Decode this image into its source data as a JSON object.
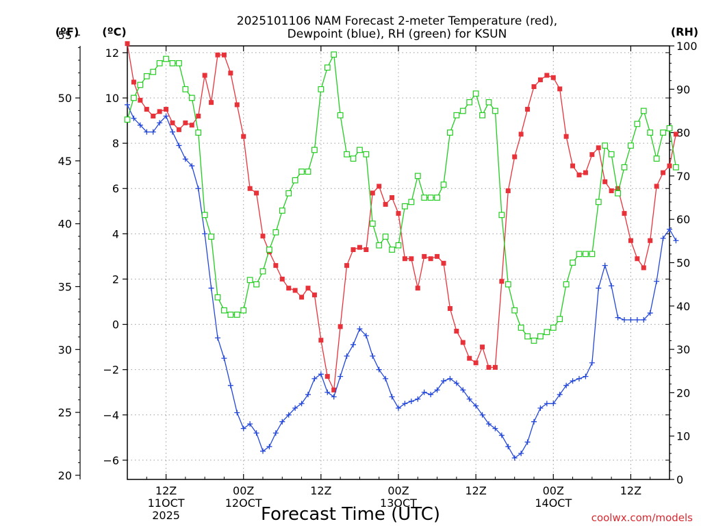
{
  "chart_data": {
    "type": "line",
    "title": [
      "2025101106 NAM Forecast 2-meter Temperature (red),",
      "Dewpoint (blue), RH (green) for KSUN"
    ],
    "xlabel": "Forecast Time (UTC)",
    "credit": "coolwx.com/models",
    "units": {
      "left_f": "(ºF)",
      "left_c": "(ºC)",
      "right": "(RH)"
    },
    "x_ticks": [
      {
        "h": 6,
        "label": [
          "12Z",
          "11OCT",
          "2025"
        ]
      },
      {
        "h": 18,
        "label": [
          "00Z",
          "12OCT"
        ]
      },
      {
        "h": 30,
        "label": [
          "12Z"
        ]
      },
      {
        "h": 42,
        "label": [
          "00Z",
          "13OCT"
        ]
      },
      {
        "h": 54,
        "label": [
          "12Z"
        ]
      },
      {
        "h": 66,
        "label": [
          "00Z",
          "14OCT"
        ]
      },
      {
        "h": 78,
        "label": [
          "12Z"
        ]
      }
    ],
    "x_range": [
      0,
      84
    ],
    "celsius_axis": {
      "range": [
        -6.85,
        12.3
      ],
      "ticks": [
        -6,
        -4,
        -2,
        0,
        2,
        4,
        6,
        8,
        10,
        12
      ]
    },
    "fahrenheit_axis": {
      "ticks": [
        20,
        25,
        30,
        35,
        40,
        45,
        50,
        55
      ]
    },
    "rh_axis": {
      "range": [
        0,
        100
      ],
      "ticks": [
        0,
        10,
        20,
        30,
        40,
        50,
        60,
        70,
        80,
        90,
        100
      ]
    },
    "series": [
      {
        "name": "Temperature",
        "unit": "C",
        "color": "#e8323a",
        "marker": "filled-square",
        "values": [
          12.4,
          10.7,
          9.9,
          9.5,
          9.2,
          9.4,
          9.5,
          8.9,
          8.6,
          8.9,
          8.8,
          9.2,
          11.0,
          9.8,
          11.9,
          11.9,
          11.1,
          9.7,
          8.3,
          6.0,
          5.8,
          3.9,
          3.2,
          2.6,
          2.0,
          1.6,
          1.5,
          1.2,
          1.6,
          1.3,
          -0.7,
          -2.3,
          -2.9,
          -0.1,
          2.6,
          3.3,
          3.4,
          3.3,
          5.8,
          6.1,
          5.3,
          5.6,
          4.9,
          2.9,
          2.9,
          1.6,
          3.0,
          2.9,
          3.0,
          2.7,
          0.7,
          -0.3,
          -0.8,
          -1.5,
          -1.7,
          -1.0,
          -1.9,
          -1.9,
          1.9,
          5.9,
          7.4,
          8.4,
          9.5,
          10.5,
          10.8,
          11.0,
          10.9,
          10.4,
          8.3,
          7.0,
          6.6,
          6.7,
          7.5,
          7.8,
          6.3,
          5.9,
          6.0,
          4.9,
          3.7,
          2.9,
          2.5,
          3.7,
          6.1,
          6.7,
          7.0,
          8.4
        ]
      },
      {
        "name": "Dewpoint",
        "unit": "C",
        "color": "#2246d8",
        "marker": "plus",
        "values": [
          9.7,
          9.1,
          8.8,
          8.5,
          8.5,
          8.9,
          9.2,
          8.5,
          7.9,
          7.3,
          7.0,
          6.0,
          4.0,
          1.6,
          -0.6,
          -1.5,
          -2.7,
          -3.9,
          -4.6,
          -4.4,
          -4.8,
          -5.6,
          -5.4,
          -4.8,
          -4.3,
          -4.0,
          -3.7,
          -3.5,
          -3.1,
          -2.4,
          -2.2,
          -3.0,
          -3.2,
          -2.3,
          -1.4,
          -0.9,
          -0.2,
          -0.5,
          -1.4,
          -2.0,
          -2.4,
          -3.2,
          -3.7,
          -3.5,
          -3.4,
          -3.3,
          -3.0,
          -3.1,
          -2.9,
          -2.5,
          -2.4,
          -2.6,
          -2.9,
          -3.3,
          -3.6,
          -4.0,
          -4.4,
          -4.6,
          -4.9,
          -5.4,
          -5.9,
          -5.7,
          -5.2,
          -4.3,
          -3.7,
          -3.5,
          -3.5,
          -3.1,
          -2.7,
          -2.5,
          -2.4,
          -2.3,
          -1.7,
          1.6,
          2.6,
          1.7,
          0.3,
          0.2,
          0.2,
          0.2,
          0.2,
          0.5,
          1.9,
          3.8,
          4.2,
          3.7
        ]
      },
      {
        "name": "RH",
        "unit": "%",
        "color": "#21cc1e",
        "marker": "open-square",
        "values": [
          83,
          88,
          91,
          93,
          94,
          96,
          97,
          96,
          96,
          90,
          88,
          80,
          61,
          56,
          42,
          39,
          38,
          38,
          39,
          46,
          45,
          48,
          53,
          57,
          62,
          66,
          69,
          71,
          71,
          76,
          90,
          95,
          98,
          84,
          75,
          74,
          76,
          75,
          59,
          54,
          56,
          53,
          54,
          63,
          64,
          70,
          65,
          65,
          65,
          68,
          80,
          84,
          85,
          87,
          89,
          84,
          87,
          85,
          61,
          45,
          39,
          35,
          33,
          32,
          33,
          34,
          35,
          37,
          45,
          50,
          52,
          52,
          52,
          64,
          77,
          75,
          66,
          72,
          77,
          82,
          85,
          80,
          74,
          80,
          81,
          72
        ]
      }
    ]
  }
}
